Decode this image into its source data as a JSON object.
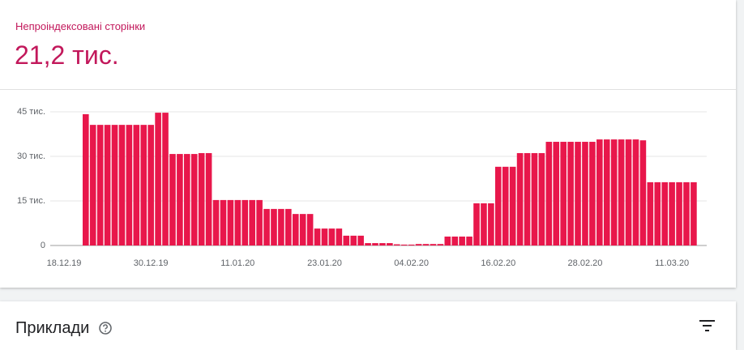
{
  "summary": {
    "label": "Непроіндексовані сторінки",
    "value": "21,2 тис."
  },
  "chart_data": {
    "type": "bar",
    "color": "#e8174b",
    "grid": true,
    "categories": [
      "18.12.19",
      null,
      null,
      null,
      null,
      null,
      null,
      null,
      null,
      null,
      null,
      null,
      "30.12.19",
      null,
      null,
      null,
      null,
      null,
      null,
      null,
      null,
      null,
      null,
      null,
      "11.01.20",
      null,
      null,
      null,
      null,
      null,
      null,
      null,
      null,
      null,
      null,
      null,
      "23.01.20",
      null,
      null,
      null,
      null,
      null,
      null,
      null,
      null,
      null,
      null,
      null,
      "04.02.20",
      null,
      null,
      null,
      null,
      null,
      null,
      null,
      null,
      null,
      null,
      null,
      "16.02.20",
      null,
      null,
      null,
      null,
      null,
      null,
      null,
      null,
      null,
      null,
      null,
      "28.02.20",
      null,
      null,
      null,
      null,
      null,
      null,
      null,
      null,
      null,
      null,
      null,
      "11.03.20",
      null,
      null,
      null
    ],
    "values": [
      null,
      null,
      null,
      44200,
      40600,
      40600,
      40600,
      40600,
      40600,
      40600,
      40600,
      40600,
      40600,
      44700,
      44700,
      30800,
      30800,
      30800,
      30800,
      31100,
      31100,
      15300,
      15300,
      15300,
      15300,
      15300,
      15300,
      15300,
      12300,
      12300,
      12300,
      12300,
      10600,
      10600,
      10600,
      5700,
      5700,
      5700,
      5700,
      3300,
      3300,
      3300,
      800,
      800,
      800,
      800,
      400,
      300,
      300,
      500,
      500,
      500,
      500,
      3000,
      3000,
      3000,
      3000,
      14200,
      14200,
      14200,
      26500,
      26500,
      26500,
      31100,
      31100,
      31100,
      31100,
      34900,
      34900,
      34900,
      34900,
      34900,
      34900,
      34900,
      35700,
      35700,
      35700,
      35700,
      35700,
      35700,
      35400,
      21300,
      21300,
      21300,
      21300,
      21300,
      21300,
      21300
    ],
    "ylim": [
      0,
      45000
    ],
    "yticks": [
      {
        "value": 0,
        "label": "0"
      },
      {
        "value": 15000,
        "label": "15 тис."
      },
      {
        "value": 30000,
        "label": "30 тис."
      },
      {
        "value": 45000,
        "label": "45 тис."
      }
    ]
  },
  "section": {
    "title": "Приклади"
  }
}
